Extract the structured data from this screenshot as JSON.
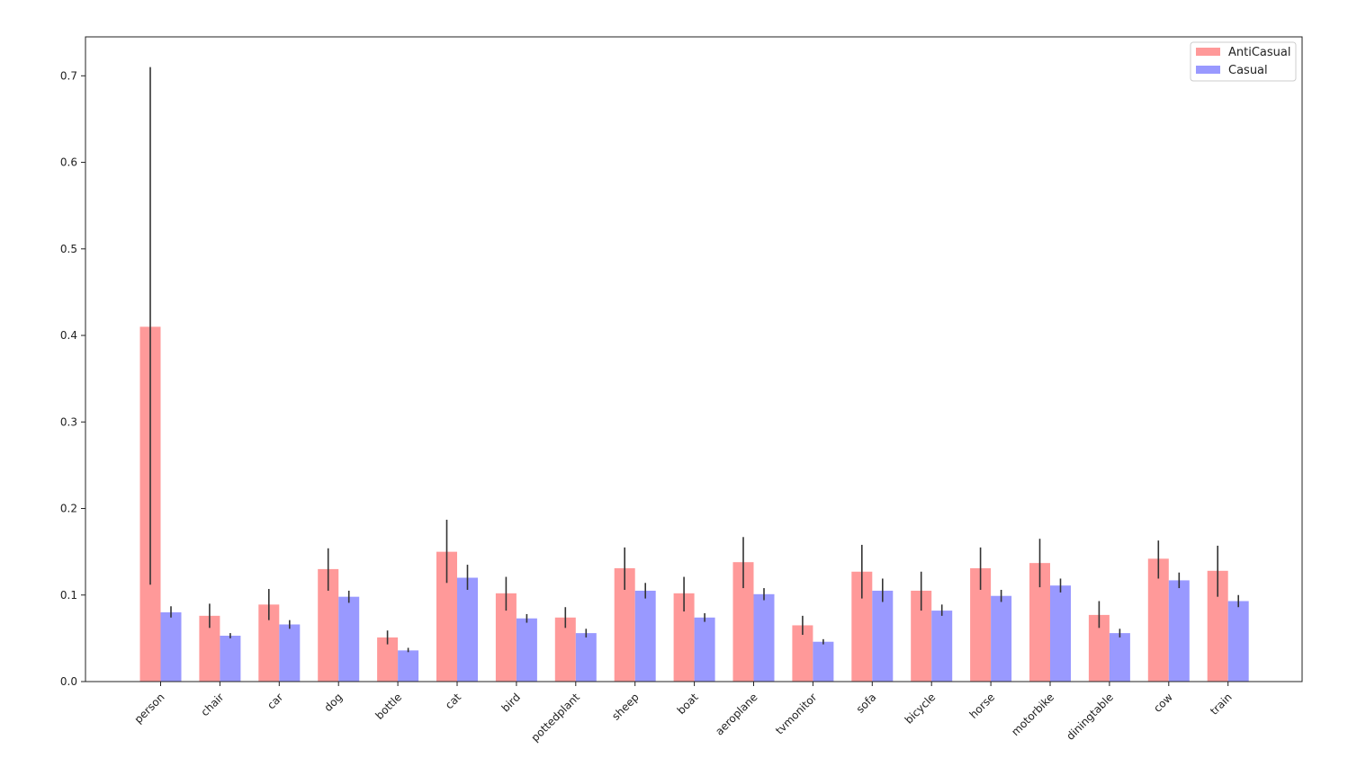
{
  "chart_data": {
    "type": "bar",
    "categories": [
      "person",
      "chair",
      "car",
      "dog",
      "bottle",
      "cat",
      "bird",
      "pottedplant",
      "sheep",
      "boat",
      "aeroplane",
      "tvmonitor",
      "sofa",
      "bicycle",
      "horse",
      "motorbike",
      "diningtable",
      "cow",
      "train"
    ],
    "series": [
      {
        "name": "AntiCasual",
        "color": "#ff9999",
        "values": [
          0.41,
          0.076,
          0.089,
          0.13,
          0.051,
          0.15,
          0.102,
          0.074,
          0.131,
          0.102,
          0.138,
          0.065,
          0.127,
          0.105,
          0.131,
          0.137,
          0.077,
          0.142,
          0.128
        ],
        "error_low": [
          0.112,
          0.062,
          0.071,
          0.105,
          0.043,
          0.114,
          0.082,
          0.062,
          0.106,
          0.081,
          0.108,
          0.054,
          0.096,
          0.082,
          0.106,
          0.109,
          0.062,
          0.119,
          0.098
        ],
        "error_high": [
          0.71,
          0.09,
          0.107,
          0.154,
          0.059,
          0.187,
          0.121,
          0.086,
          0.155,
          0.121,
          0.167,
          0.076,
          0.158,
          0.127,
          0.155,
          0.165,
          0.093,
          0.163,
          0.157
        ]
      },
      {
        "name": "Casual",
        "color": "#9999ff",
        "values": [
          0.08,
          0.053,
          0.066,
          0.098,
          0.036,
          0.12,
          0.073,
          0.056,
          0.105,
          0.074,
          0.101,
          0.046,
          0.105,
          0.082,
          0.099,
          0.111,
          0.056,
          0.117,
          0.093
        ],
        "error_low": [
          0.074,
          0.05,
          0.061,
          0.091,
          0.034,
          0.106,
          0.068,
          0.051,
          0.096,
          0.069,
          0.094,
          0.043,
          0.092,
          0.076,
          0.092,
          0.103,
          0.051,
          0.108,
          0.086
        ],
        "error_high": [
          0.087,
          0.056,
          0.071,
          0.105,
          0.039,
          0.135,
          0.078,
          0.061,
          0.114,
          0.079,
          0.108,
          0.049,
          0.119,
          0.089,
          0.106,
          0.119,
          0.061,
          0.126,
          0.1
        ]
      }
    ],
    "yticks": [
      "0.0",
      "0.1",
      "0.2",
      "0.3",
      "0.4",
      "0.5",
      "0.6",
      "0.7"
    ],
    "ylim": [
      0,
      0.745
    ],
    "title": "",
    "xlabel": "",
    "ylabel": "",
    "grid": false,
    "legend_position": "top-right",
    "error_bar_color": "#333333"
  }
}
